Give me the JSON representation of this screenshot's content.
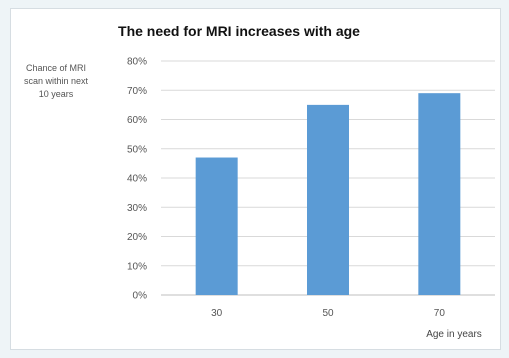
{
  "chart_data": {
    "type": "bar",
    "title": "The need for MRI increases with age",
    "ylabel_lines": [
      "Chance of MRI",
      "scan within next",
      "10 years"
    ],
    "xlabel": "Age in years",
    "categories": [
      "30",
      "50",
      "70"
    ],
    "values": [
      47,
      65,
      69
    ],
    "ylim": [
      0,
      80
    ],
    "yticks": [
      0,
      10,
      20,
      30,
      40,
      50,
      60,
      70,
      80
    ],
    "ytick_labels": [
      "0%",
      "10%",
      "20%",
      "30%",
      "40%",
      "50%",
      "60%",
      "70%",
      "80%"
    ],
    "bar_color": "#5b9bd5",
    "grid": true,
    "legend": "none"
  }
}
